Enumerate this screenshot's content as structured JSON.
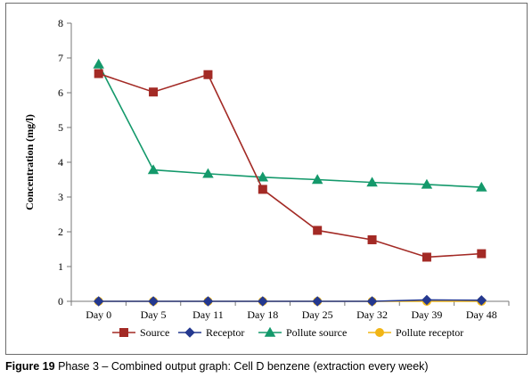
{
  "caption": {
    "number": "Figure 19",
    "text": "Phase 3 – Combined output graph: Cell D benzene (extraction every week)"
  },
  "chart_data": {
    "type": "line",
    "categories": [
      "Day 0",
      "Day 5",
      "Day 11",
      "Day 18",
      "Day 25",
      "Day 32",
      "Day 39",
      "Day 48"
    ],
    "ylabel": "Concentration (mg/l)",
    "xlabel": "",
    "ylim": [
      0,
      8
    ],
    "yticks": [
      0,
      1,
      2,
      3,
      4,
      5,
      6,
      7,
      8
    ],
    "grid": false,
    "legend": "bottom",
    "series": [
      {
        "name": "Source",
        "color": "#a32a25",
        "marker": "square",
        "values": [
          6.55,
          6.02,
          6.52,
          3.22,
          2.04,
          1.77,
          1.27,
          1.37
        ]
      },
      {
        "name": "Receptor",
        "color": "#24388f",
        "marker": "diamond",
        "values": [
          0,
          0,
          0,
          0,
          0,
          0,
          0.04,
          0.03
        ]
      },
      {
        "name": "Pollute source",
        "color": "#14996b",
        "marker": "triangle",
        "values": [
          6.82,
          3.78,
          3.67,
          3.57,
          3.5,
          3.42,
          3.36,
          3.28
        ]
      },
      {
        "name": "Pollute receptor",
        "color": "#f1b515",
        "marker": "circle",
        "values": [
          0,
          0,
          0,
          0,
          0,
          0,
          0,
          0
        ]
      }
    ]
  }
}
